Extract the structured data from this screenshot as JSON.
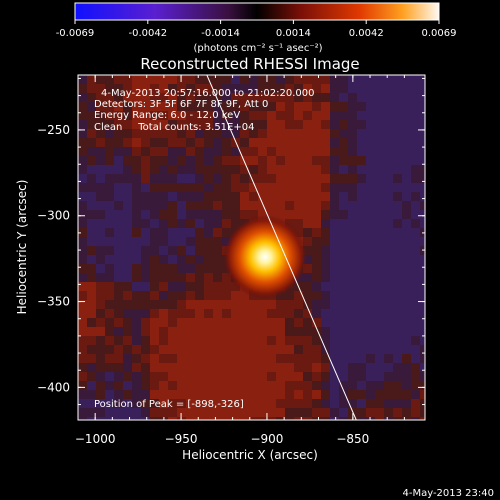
{
  "colorbar": {
    "tick_labels": [
      "-0.0069",
      "-0.0042",
      "-0.0014",
      "0.0014",
      "0.0042",
      "0.0069"
    ],
    "units_label": "(photons cm⁻² s⁻¹ asec⁻²)"
  },
  "footer": {
    "timestamp": "4-May-2013 23:40"
  },
  "chart_data": {
    "type": "heatmap",
    "title": "Reconstructed RHESSI Image",
    "xlabel": "Heliocentric X (arcsec)",
    "ylabel": "Heliocentric Y (arcsec)",
    "xlim": [
      -1010,
      -808
    ],
    "ylim": [
      -419,
      -218
    ],
    "xticks": [
      "−1000",
      "−950",
      "−900",
      "−850"
    ],
    "yticks": [
      "−250",
      "−300",
      "−350",
      "−400"
    ],
    "info_lines": [
      "4-May-2013 20:57:16.000 to 21:02:20.000",
      "Detectors: 3F 5F 6F 7F 8F 9F, Att 0",
      "Energy Range: 6.0 - 12.0 keV",
      "Clean     Total counts: 3.51E+04"
    ],
    "peak_label": "Position of Peak = [-898,-326]",
    "peak": {
      "x": -898,
      "y": -326
    },
    "value_range": [
      -0.0069,
      0.0069
    ],
    "limb_line": [
      {
        "x": -935,
        "y": -218
      },
      {
        "x": -848,
        "y": -419
      }
    ]
  }
}
